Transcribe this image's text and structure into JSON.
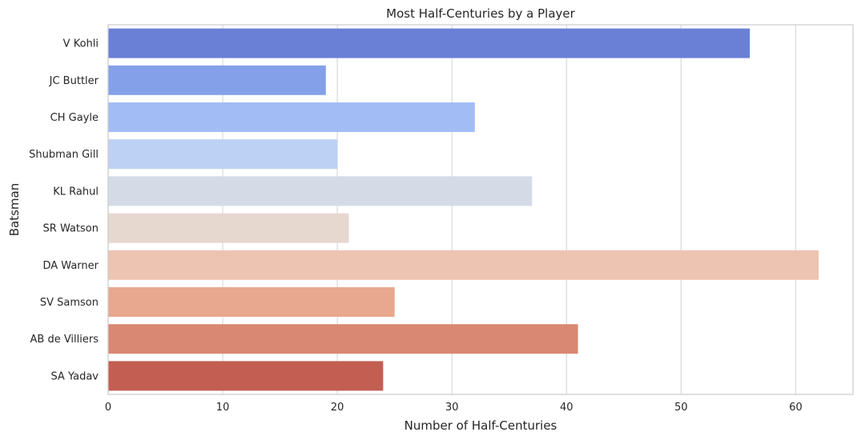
{
  "chart_data": {
    "type": "bar",
    "orientation": "horizontal",
    "title": "Most Half-Centuries by a Player",
    "xlabel": "Number of Half-Centuries",
    "ylabel": "Batsman",
    "xlim": [
      0,
      65
    ],
    "xticks": [
      0,
      10,
      20,
      30,
      40,
      50,
      60
    ],
    "grid": "vertical",
    "categories": [
      "V Kohli",
      "JC Buttler",
      "CH Gayle",
      "Shubman Gill",
      "KL Rahul",
      "SR Watson",
      "DA Warner",
      "SV Samson",
      "AB de Villiers",
      "SA Yadav"
    ],
    "values": [
      56,
      19,
      32,
      20,
      37,
      21,
      62,
      25,
      41,
      24
    ],
    "colors": [
      "#6a80d6",
      "#84a0e8",
      "#a2bdf5",
      "#bcd1f4",
      "#d4dbe7",
      "#e6d7cf",
      "#edc3b1",
      "#e8a78f",
      "#d98873",
      "#c25e52"
    ]
  }
}
